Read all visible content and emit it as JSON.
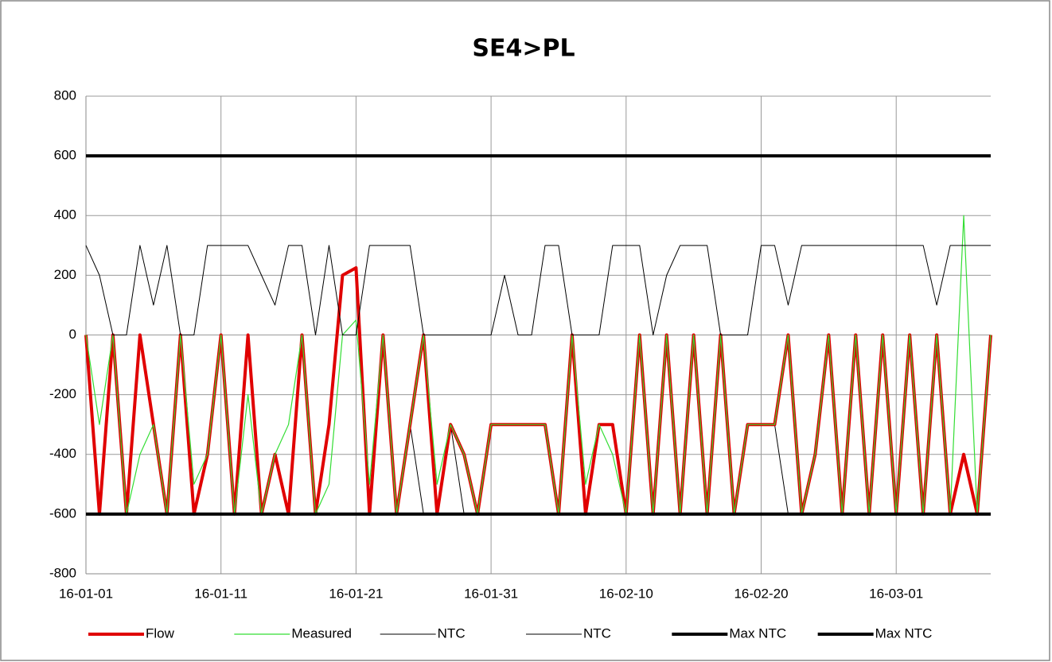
{
  "chart_data": {
    "type": "line",
    "title": "SE4>PL",
    "x": [
      "16-01-01",
      "16-01-02",
      "16-01-03",
      "16-01-04",
      "16-01-05",
      "16-01-06",
      "16-01-07",
      "16-01-08",
      "16-01-09",
      "16-01-10",
      "16-01-11",
      "16-01-12",
      "16-01-13",
      "16-01-14",
      "16-01-15",
      "16-01-16",
      "16-01-17",
      "16-01-18",
      "16-01-19",
      "16-01-20",
      "16-01-21",
      "16-01-22",
      "16-01-23",
      "16-01-24",
      "16-01-25",
      "16-01-26",
      "16-01-27",
      "16-01-28",
      "16-01-29",
      "16-01-30",
      "16-01-31",
      "16-02-01",
      "16-02-02",
      "16-02-03",
      "16-02-04",
      "16-02-05",
      "16-02-06",
      "16-02-07",
      "16-02-08",
      "16-02-09",
      "16-02-10",
      "16-02-11",
      "16-02-12",
      "16-02-13",
      "16-02-14",
      "16-02-15",
      "16-02-16",
      "16-02-17",
      "16-02-18",
      "16-02-19",
      "16-02-20",
      "16-02-21",
      "16-02-22",
      "16-02-23",
      "16-02-24",
      "16-02-25",
      "16-02-26",
      "16-02-27",
      "16-02-28",
      "16-02-29",
      "16-03-01",
      "16-03-02",
      "16-03-03",
      "16-03-04",
      "16-03-05",
      "16-03-06",
      "16-03-07",
      "16-03-08"
    ],
    "series": [
      {
        "name": "Flow",
        "color": "#e00000",
        "values": [
          0,
          -600,
          0,
          -600,
          0,
          -300,
          -600,
          0,
          -600,
          -400,
          0,
          -600,
          0,
          -600,
          -400,
          -600,
          0,
          -600,
          -300,
          200,
          225,
          -600,
          0,
          -600,
          -300,
          0,
          -600,
          -300,
          -400,
          -600,
          -300,
          -300,
          -300,
          -300,
          -300,
          -600,
          0,
          -600,
          -300,
          -300,
          -600,
          0,
          -600,
          0,
          -600,
          0,
          -600,
          0,
          -600,
          -300,
          -300,
          -300,
          0,
          -600,
          -400,
          0,
          -600,
          0,
          -600,
          0,
          -600,
          0,
          -600,
          0,
          -600,
          -400,
          -600,
          0
        ]
      },
      {
        "name": "Measured",
        "color": "#33dd33",
        "values": [
          0,
          -300,
          0,
          -600,
          -400,
          -300,
          -600,
          0,
          -500,
          -400,
          0,
          -600,
          -200,
          -600,
          -400,
          -300,
          0,
          -600,
          -500,
          0,
          50,
          -500,
          0,
          -600,
          -300,
          0,
          -500,
          -300,
          -400,
          -600,
          -300,
          -300,
          -300,
          -300,
          -300,
          -600,
          0,
          -500,
          -300,
          -400,
          -600,
          0,
          -600,
          0,
          -600,
          0,
          -600,
          0,
          -600,
          -300,
          -300,
          -300,
          0,
          -600,
          -400,
          0,
          -600,
          0,
          -600,
          0,
          -600,
          0,
          -600,
          0,
          -600,
          400,
          -600,
          0
        ]
      },
      {
        "name": "NTC",
        "color": "#000000",
        "values": [
          300,
          200,
          0,
          0,
          300,
          100,
          300,
          0,
          0,
          300,
          300,
          300,
          300,
          200,
          100,
          300,
          300,
          0,
          300,
          0,
          0,
          300,
          300,
          300,
          300,
          0,
          0,
          0,
          0,
          0,
          0,
          200,
          0,
          0,
          300,
          300,
          0,
          0,
          0,
          300,
          300,
          300,
          0,
          200,
          300,
          300,
          300,
          0,
          0,
          0,
          300,
          300,
          100,
          300,
          300,
          300,
          300,
          300,
          300,
          300,
          300,
          300,
          300,
          100,
          300,
          300,
          300,
          300
        ]
      },
      {
        "name": "NTC",
        "color": "#000000",
        "values": [
          -600,
          -600,
          -600,
          -600,
          -600,
          -600,
          -600,
          -600,
          -600,
          -600,
          -600,
          -600,
          -600,
          -600,
          -600,
          -600,
          -600,
          -600,
          -600,
          -600,
          -600,
          -600,
          -600,
          -600,
          -300,
          -600,
          -600,
          -300,
          -600,
          -600,
          -300,
          -300,
          -300,
          -300,
          -300,
          -600,
          -600,
          -600,
          -300,
          -300,
          -600,
          -600,
          -600,
          -600,
          -600,
          -600,
          -600,
          -600,
          -600,
          -300,
          -300,
          -300,
          -600,
          -600,
          -600,
          -600,
          -600,
          -600,
          -600,
          -600,
          -600,
          -600,
          -600,
          -600,
          -600,
          -600,
          -600,
          -600
        ]
      },
      {
        "name": "Max NTC",
        "color": "#000000",
        "values": [
          600,
          600,
          600,
          600,
          600,
          600,
          600,
          600,
          600,
          600,
          600,
          600,
          600,
          600,
          600,
          600,
          600,
          600,
          600,
          600,
          600,
          600,
          600,
          600,
          600,
          600,
          600,
          600,
          600,
          600,
          600,
          600,
          600,
          600,
          600,
          600,
          600,
          600,
          600,
          600,
          600,
          600,
          600,
          600,
          600,
          600,
          600,
          600,
          600,
          600,
          600,
          600,
          600,
          600,
          600,
          600,
          600,
          600,
          600,
          600,
          600,
          600,
          600,
          600,
          600,
          600,
          600,
          600
        ]
      },
      {
        "name": "Max NTC",
        "color": "#000000",
        "values": [
          -600,
          -600,
          -600,
          -600,
          -600,
          -600,
          -600,
          -600,
          -600,
          -600,
          -600,
          -600,
          -600,
          -600,
          -600,
          -600,
          -600,
          -600,
          -600,
          -600,
          -600,
          -600,
          -600,
          -600,
          -600,
          -600,
          -600,
          -600,
          -600,
          -600,
          -600,
          -600,
          -600,
          -600,
          -600,
          -600,
          -600,
          -600,
          -600,
          -600,
          -600,
          -600,
          -600,
          -600,
          -600,
          -600,
          -600,
          -600,
          -600,
          -600,
          -600,
          -600,
          -600,
          -600,
          -600,
          -600,
          -600,
          -600,
          -600,
          -600,
          -600,
          -600,
          -600,
          -600,
          -600,
          -600,
          -600,
          -600
        ]
      }
    ],
    "xlim": [
      "16-01-01",
      "16-03-08"
    ],
    "xticks": [
      "16-01-01",
      "16-01-11",
      "16-01-21",
      "16-01-31",
      "16-02-10",
      "16-02-20",
      "16-03-01"
    ],
    "ylim": [
      -800,
      800
    ],
    "yticks": [
      800,
      600,
      400,
      200,
      0,
      -200,
      -400,
      -600,
      -800
    ],
    "grid": true,
    "legend": "bottom"
  }
}
